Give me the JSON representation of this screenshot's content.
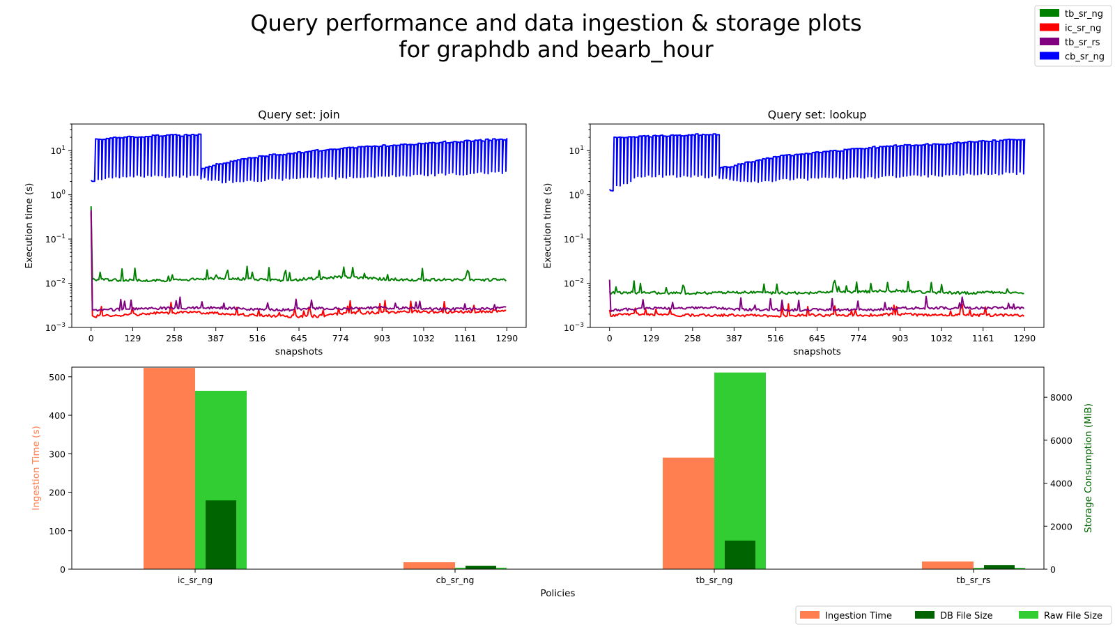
{
  "figure": {
    "title_line1": "Query performance and data ingestion & storage plots",
    "title_line2": "for graphdb and bearb_hour"
  },
  "legend_top": [
    {
      "label": "tb_sr_ng",
      "color": "#008000"
    },
    {
      "label": "ic_sr_ng",
      "color": "#ff0000"
    },
    {
      "label": "tb_sr_rs",
      "color": "#800080"
    },
    {
      "label": "cb_sr_ng",
      "color": "#0000ff"
    }
  ],
  "legend_bottom": [
    {
      "label": "Ingestion Time",
      "color": "#ff7f50"
    },
    {
      "label": "DB File Size",
      "color": "#006400"
    },
    {
      "label": "Raw File Size",
      "color": "#32cd32"
    }
  ],
  "chart_data": [
    {
      "type": "line",
      "title": "Query set: join",
      "xlabel": "snapshots",
      "ylabel": "Execution time (s)",
      "yscale": "log",
      "ylim": [
        0.001,
        40
      ],
      "xlim": [
        -60,
        1350
      ],
      "xticks": [
        0,
        129,
        258,
        387,
        516,
        645,
        774,
        903,
        1032,
        1161,
        1290
      ],
      "yticks": [
        0.001,
        0.01,
        0.1,
        1,
        10
      ],
      "ytick_labels": [
        [
          "10",
          "−3"
        ],
        [
          "10",
          "−2"
        ],
        [
          "10",
          "−1"
        ],
        [
          "10",
          "0"
        ],
        [
          "10",
          "1"
        ]
      ],
      "grid": false,
      "series": [
        {
          "name": "cb_sr_ng",
          "color": "#0000ff",
          "points": [
            [
              0,
              2.0
            ],
            [
              5,
              18
            ],
            [
              50,
              19
            ],
            [
              100,
              20
            ],
            [
              200,
              22
            ],
            [
              280,
              22
            ],
            [
              334,
              23
            ],
            [
              336,
              4.0
            ],
            [
              380,
              4.8
            ],
            [
              450,
              6.2
            ],
            [
              520,
              7.5
            ],
            [
              600,
              8.6
            ],
            [
              700,
              10
            ],
            [
              800,
              11.5
            ],
            [
              900,
              13
            ],
            [
              1000,
              14
            ],
            [
              1100,
              15.5
            ],
            [
              1200,
              17
            ],
            [
              1290,
              18.5
            ]
          ],
          "lows": [
            [
              0,
              2.0
            ],
            [
              100,
              2.7
            ],
            [
              200,
              2.7
            ],
            [
              330,
              2.6
            ],
            [
              336,
              2.5
            ],
            [
              400,
              2.0
            ],
            [
              500,
              2.1
            ],
            [
              600,
              2.3
            ],
            [
              800,
              2.5
            ],
            [
              1000,
              2.8
            ],
            [
              1200,
              3.1
            ],
            [
              1290,
              3.3
            ]
          ]
        },
        {
          "name": "tb_sr_ng",
          "color": "#008000",
          "points": [
            [
              0,
              0.55
            ],
            [
              3,
              0.012
            ],
            [
              100,
              0.0118
            ],
            [
              200,
              0.0115
            ],
            [
              300,
              0.012
            ],
            [
              400,
              0.013
            ],
            [
              500,
              0.0125
            ],
            [
              600,
              0.0115
            ],
            [
              700,
              0.013
            ],
            [
              800,
              0.014
            ],
            [
              900,
              0.0125
            ],
            [
              1000,
              0.012
            ],
            [
              1100,
              0.012
            ],
            [
              1200,
              0.012
            ],
            [
              1290,
              0.012
            ]
          ]
        },
        {
          "name": "ic_sr_ng",
          "color": "#ff0000",
          "points": [
            [
              0,
              0.4
            ],
            [
              3,
              0.0018
            ],
            [
              100,
              0.0019
            ],
            [
              200,
              0.0021
            ],
            [
              300,
              0.0022
            ],
            [
              400,
              0.0021
            ],
            [
              500,
              0.0019
            ],
            [
              600,
              0.0018
            ],
            [
              700,
              0.0018
            ],
            [
              800,
              0.0021
            ],
            [
              900,
              0.0022
            ],
            [
              1000,
              0.0023
            ],
            [
              1100,
              0.0022
            ],
            [
              1200,
              0.0023
            ],
            [
              1290,
              0.0024
            ]
          ]
        },
        {
          "name": "tb_sr_rs",
          "color": "#800080",
          "points": [
            [
              0,
              0.45
            ],
            [
              3,
              0.0024
            ],
            [
              100,
              0.0026
            ],
            [
              200,
              0.0027
            ],
            [
              300,
              0.0028
            ],
            [
              400,
              0.0028
            ],
            [
              500,
              0.0026
            ],
            [
              600,
              0.0025
            ],
            [
              700,
              0.0027
            ],
            [
              800,
              0.0027
            ],
            [
              900,
              0.0028
            ],
            [
              1000,
              0.0027
            ],
            [
              1100,
              0.0026
            ],
            [
              1200,
              0.0026
            ],
            [
              1290,
              0.0028
            ]
          ]
        }
      ]
    },
    {
      "type": "line",
      "title": "Query set: lookup",
      "xlabel": "snapshots",
      "ylabel": "Execution time (s)",
      "yscale": "log",
      "ylim": [
        0.001,
        40
      ],
      "xlim": [
        -60,
        1350
      ],
      "xticks": [
        0,
        129,
        258,
        387,
        516,
        645,
        774,
        903,
        1032,
        1161,
        1290
      ],
      "yticks": [
        0.001,
        0.01,
        0.1,
        1,
        10
      ],
      "ytick_labels": [
        [
          "10",
          "−3"
        ],
        [
          "10",
          "−2"
        ],
        [
          "10",
          "−1"
        ],
        [
          "10",
          "0"
        ],
        [
          "10",
          "1"
        ]
      ],
      "grid": false,
      "series": [
        {
          "name": "cb_sr_ng",
          "color": "#0000ff",
          "points": [
            [
              0,
              1.3
            ],
            [
              5,
              20
            ],
            [
              50,
              20
            ],
            [
              100,
              21
            ],
            [
              200,
              22
            ],
            [
              280,
              23
            ],
            [
              334,
              23
            ],
            [
              336,
              4.0
            ],
            [
              380,
              4.6
            ],
            [
              450,
              6
            ],
            [
              520,
              7.5
            ],
            [
              600,
              8.6
            ],
            [
              700,
              10
            ],
            [
              800,
              11.5
            ],
            [
              900,
              13
            ],
            [
              1000,
              14
            ],
            [
              1100,
              15.5
            ],
            [
              1200,
              17
            ],
            [
              1290,
              18.5
            ]
          ],
          "lows": [
            [
              0,
              1.3
            ],
            [
              100,
              2.7
            ],
            [
              200,
              2.7
            ],
            [
              330,
              2.6
            ],
            [
              336,
              2.5
            ],
            [
              400,
              2.0
            ],
            [
              500,
              2.1
            ],
            [
              600,
              2.3
            ],
            [
              800,
              2.5
            ],
            [
              1000,
              2.7
            ],
            [
              1200,
              3.0
            ],
            [
              1290,
              3.2
            ]
          ]
        },
        {
          "name": "tb_sr_ng",
          "color": "#008000",
          "points": [
            [
              0,
              0.0065
            ],
            [
              3,
              0.006
            ],
            [
              100,
              0.0062
            ],
            [
              200,
              0.006
            ],
            [
              300,
              0.006
            ],
            [
              400,
              0.0062
            ],
            [
              500,
              0.0061
            ],
            [
              600,
              0.006
            ],
            [
              700,
              0.0062
            ],
            [
              800,
              0.0065
            ],
            [
              900,
              0.0068
            ],
            [
              1000,
              0.0062
            ],
            [
              1100,
              0.006
            ],
            [
              1200,
              0.0063
            ],
            [
              1290,
              0.0062
            ]
          ]
        },
        {
          "name": "ic_sr_ng",
          "color": "#ff0000",
          "points": [
            [
              0,
              0.0025
            ],
            [
              3,
              0.0019
            ],
            [
              100,
              0.002
            ],
            [
              200,
              0.0019
            ],
            [
              300,
              0.0019
            ],
            [
              400,
              0.0019
            ],
            [
              500,
              0.0018
            ],
            [
              600,
              0.0019
            ],
            [
              700,
              0.0019
            ],
            [
              800,
              0.0019
            ],
            [
              900,
              0.002
            ],
            [
              1000,
              0.0019
            ],
            [
              1100,
              0.0019
            ],
            [
              1200,
              0.0019
            ],
            [
              1290,
              0.0019
            ]
          ]
        },
        {
          "name": "tb_sr_rs",
          "color": "#800080",
          "points": [
            [
              0,
              0.012
            ],
            [
              3,
              0.0024
            ],
            [
              100,
              0.0027
            ],
            [
              200,
              0.0027
            ],
            [
              300,
              0.0028
            ],
            [
              400,
              0.0026
            ],
            [
              500,
              0.0025
            ],
            [
              600,
              0.0025
            ],
            [
              700,
              0.0025
            ],
            [
              800,
              0.0025
            ],
            [
              900,
              0.0027
            ],
            [
              1000,
              0.0028
            ],
            [
              1100,
              0.0027
            ],
            [
              1200,
              0.0028
            ],
            [
              1290,
              0.0027
            ]
          ]
        }
      ]
    },
    {
      "type": "bar",
      "xlabel": "Policies",
      "ylabel": "Ingestion Time (s)",
      "y2label": "Storage Consumption (MiB)",
      "categories": [
        "ic_sr_ng",
        "cb_sr_ng",
        "tb_sr_ng",
        "tb_sr_rs"
      ],
      "ylim": [
        0,
        525
      ],
      "y2lim": [
        0,
        9400
      ],
      "yticks": [
        0,
        100,
        200,
        300,
        400,
        500
      ],
      "y2ticks": [
        0,
        2000,
        4000,
        6000,
        8000
      ],
      "series": [
        {
          "name": "Ingestion Time",
          "axis": "left",
          "color": "#ff7f50",
          "values": [
            523,
            18,
            290,
            20
          ]
        },
        {
          "name": "DB File Size",
          "axis": "right",
          "color": "#006400",
          "values": [
            3200,
            160,
            1330,
            190
          ]
        },
        {
          "name": "Raw File Size",
          "axis": "right",
          "color": "#32cd32",
          "values": [
            8300,
            70,
            9150,
            65
          ]
        }
      ]
    }
  ]
}
